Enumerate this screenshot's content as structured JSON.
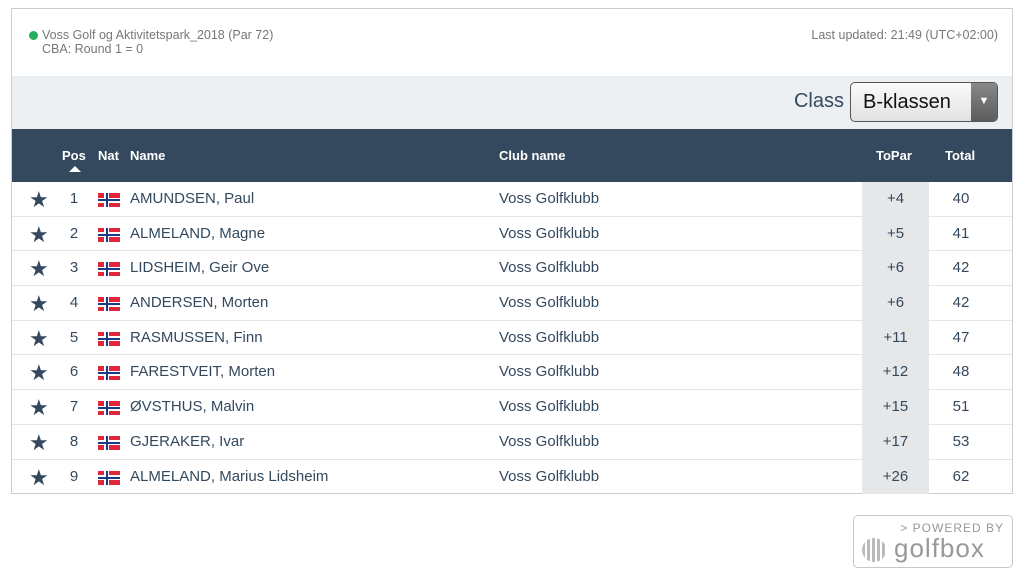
{
  "header": {
    "course": "Voss Golf og Aktivitetspark_2018 (Par 72)",
    "cba": "CBA: Round 1 = 0",
    "last_updated": "Last updated: 21:49 (UTC+02:00)",
    "status_color": "#27ae60"
  },
  "filter": {
    "label": "Class",
    "selected": "B-klassen"
  },
  "columns": {
    "pos": "Pos",
    "nat": "Nat",
    "name": "Name",
    "club": "Club name",
    "topar": "ToPar",
    "total": "Total"
  },
  "rows": [
    {
      "pos": "1",
      "nat": "NOR",
      "name": "AMUNDSEN, Paul",
      "club": "Voss Golfklubb",
      "topar": "+4",
      "total": "40"
    },
    {
      "pos": "2",
      "nat": "NOR",
      "name": "ALMELAND, Magne",
      "club": "Voss Golfklubb",
      "topar": "+5",
      "total": "41"
    },
    {
      "pos": "3",
      "nat": "NOR",
      "name": "LIDSHEIM, Geir Ove",
      "club": "Voss Golfklubb",
      "topar": "+6",
      "total": "42"
    },
    {
      "pos": "4",
      "nat": "NOR",
      "name": "ANDERSEN, Morten",
      "club": "Voss Golfklubb",
      "topar": "+6",
      "total": "42"
    },
    {
      "pos": "5",
      "nat": "NOR",
      "name": "RASMUSSEN, Finn",
      "club": "Voss Golfklubb",
      "topar": "+11",
      "total": "47"
    },
    {
      "pos": "6",
      "nat": "NOR",
      "name": "FARESTVEIT, Morten",
      "club": "Voss Golfklubb",
      "topar": "+12",
      "total": "48"
    },
    {
      "pos": "7",
      "nat": "NOR",
      "name": "ØVSTHUS, Malvin",
      "club": "Voss Golfklubb",
      "topar": "+15",
      "total": "51"
    },
    {
      "pos": "8",
      "nat": "NOR",
      "name": "GJERAKER, Ivar",
      "club": "Voss Golfklubb",
      "topar": "+17",
      "total": "53"
    },
    {
      "pos": "9",
      "nat": "NOR",
      "name": "ALMELAND, Marius Lidsheim",
      "club": "Voss Golfklubb",
      "topar": "+26",
      "total": "62"
    }
  ],
  "footer": {
    "powered": "> POWERED BY",
    "brand": "golfbox"
  }
}
